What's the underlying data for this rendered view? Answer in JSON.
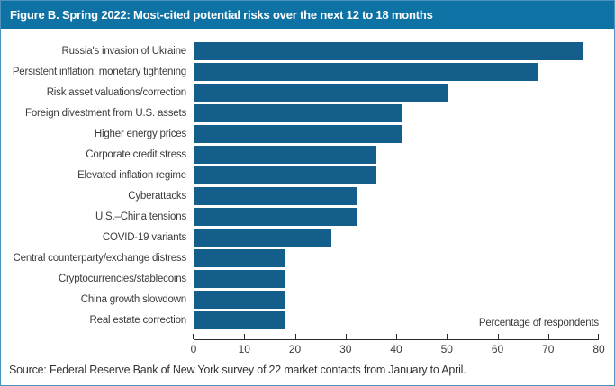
{
  "header": {
    "title": "Figure B. Spring 2022: Most-cited potential risks over the next 12 to 18 months",
    "background_color": "#0e72a4",
    "text_color": "#ffffff"
  },
  "chart_data": {
    "type": "bar",
    "orientation": "horizontal",
    "title": "Figure B. Spring 2022: Most-cited potential risks over the next 12 to 18 months",
    "categories": [
      "Russia's invasion of Ukraine",
      "Persistent inflation; monetary tightening",
      "Risk asset valuations/correction",
      "Foreign divestment from U.S. assets",
      "Higher energy prices",
      "Corporate credit stress",
      "Elevated inflation regime",
      "Cyberattacks",
      "U.S.–China tensions",
      "COVID-19 variants",
      "Central counterparty/exchange distress",
      "Cryptocurrencies/stablecoins",
      "China growth slowdown",
      "Real estate correction"
    ],
    "values": [
      77,
      68,
      50,
      41,
      41,
      36,
      36,
      32,
      32,
      27,
      18,
      18,
      18,
      18
    ],
    "xlabel": "Percentage of respondents",
    "ylabel": "",
    "xlim": [
      0,
      80
    ],
    "xticks": [
      0,
      10,
      20,
      30,
      40,
      50,
      60,
      70,
      80
    ],
    "bar_color": "#135e8b",
    "grid": false,
    "legend": false
  },
  "footer": {
    "source": "Source: Federal Reserve Bank of New York survey of 22 market contacts from January to April."
  }
}
